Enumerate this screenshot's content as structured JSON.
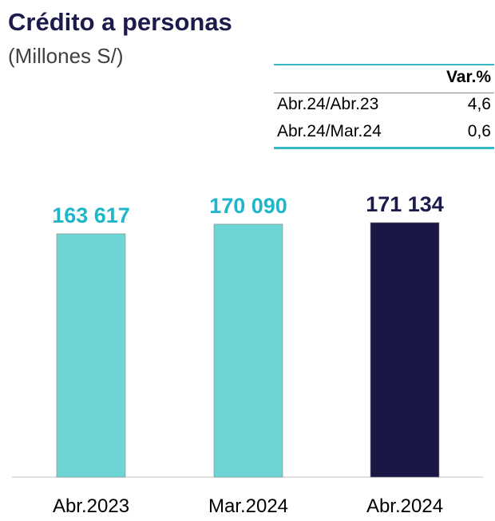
{
  "title": "Crédito a personas",
  "subtitle": "(Millones S/)",
  "variation_table": {
    "header": "Var.%",
    "rows": [
      {
        "label": "Abr.24/Abr.23",
        "value": "4,6"
      },
      {
        "label": "Abr.24/Mar.24",
        "value": "0,6"
      }
    ]
  },
  "chart_data": {
    "type": "bar",
    "categories": [
      "Abr.2023",
      "Mar.2024",
      "Abr.2024"
    ],
    "values": [
      163617,
      170090,
      171134
    ],
    "data_labels": [
      "163 617",
      "170 090",
      "171 134"
    ],
    "bar_colors": [
      "#6dd5d3",
      "#6dd5d3",
      "#1a1747"
    ],
    "label_colors": [
      "#20b6c9",
      "#20b6c9",
      "#1d1b4b"
    ]
  }
}
